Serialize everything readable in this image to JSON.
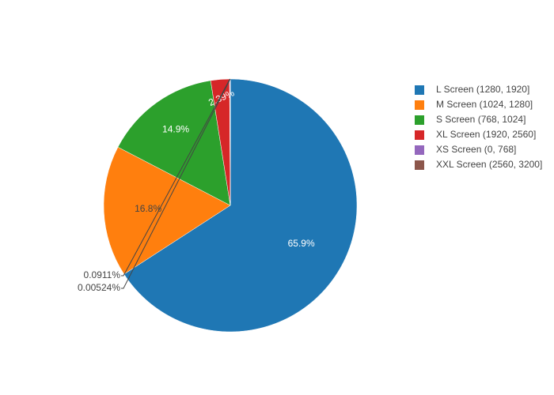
{
  "chart_data": {
    "type": "pie",
    "title": "",
    "labels": [
      "L Screen (1280, 1920]",
      "M Screen (1024, 1280]",
      "S Screen (768, 1024]",
      "XL Screen (1920, 2560]",
      "XS Screen (0, 768]",
      "XXL Screen (2560, 3200]"
    ],
    "values": [
      65.9,
      16.8,
      14.9,
      2.39,
      0.0911,
      0.00524
    ],
    "value_labels": [
      "65.9%",
      "16.8%",
      "14.9%",
      "2.39%",
      "0.0911%",
      "0.00524%"
    ],
    "colors": [
      "#1f77b4",
      "#ff7f0e",
      "#2ca02c",
      "#d62728",
      "#9467bd",
      "#8c564b"
    ],
    "legend_position": "top-right",
    "direction": "clockwise",
    "start_angle": "top"
  }
}
